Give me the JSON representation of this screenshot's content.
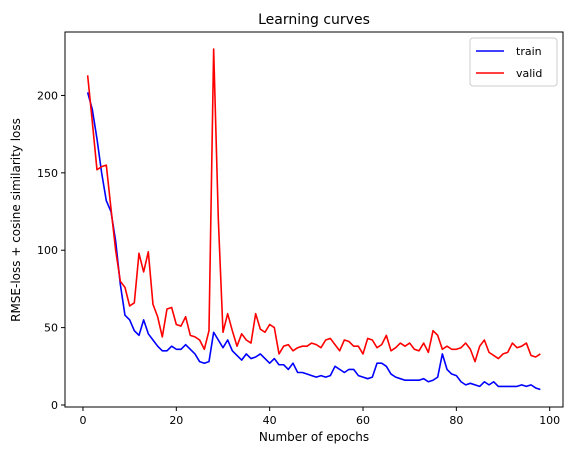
{
  "chart_data": {
    "type": "line",
    "title": "Learning curves",
    "xlabel": "Number of epochs",
    "ylabel": "RMSE-loss + cosine similarity loss",
    "xlim": [
      -3.85,
      102.85
    ],
    "ylim": [
      -1.3,
      241
    ],
    "xticks": [
      0,
      20,
      40,
      60,
      80,
      100
    ],
    "yticks": [
      0,
      50,
      100,
      150,
      200
    ],
    "grid": false,
    "legend_position": "top-right",
    "x": [
      1,
      2,
      3,
      4,
      5,
      6,
      7,
      8,
      9,
      10,
      11,
      12,
      13,
      14,
      15,
      16,
      17,
      18,
      19,
      20,
      21,
      22,
      23,
      24,
      25,
      26,
      27,
      28,
      29,
      30,
      31,
      32,
      33,
      34,
      35,
      36,
      37,
      38,
      39,
      40,
      41,
      42,
      43,
      44,
      45,
      46,
      47,
      48,
      49,
      50,
      51,
      52,
      53,
      54,
      55,
      56,
      57,
      58,
      59,
      60,
      61,
      62,
      63,
      64,
      65,
      66,
      67,
      68,
      69,
      70,
      71,
      72,
      73,
      74,
      75,
      76,
      77,
      78,
      79,
      80,
      81,
      82,
      83,
      84,
      85,
      86,
      87,
      88,
      89,
      90,
      91,
      92,
      93,
      94,
      95,
      96,
      97,
      98
    ],
    "series": [
      {
        "name": "train",
        "color": "#0000ff",
        "values": [
          202,
          191,
          172,
          150,
          132,
          125,
          106,
          78,
          58,
          55,
          48,
          45,
          55,
          46,
          42,
          38,
          35,
          35,
          38,
          36,
          36,
          39,
          36,
          33,
          28,
          27,
          28,
          47,
          42,
          37,
          42,
          35,
          32,
          29,
          33,
          30,
          31,
          33,
          30,
          27,
          30,
          26,
          26,
          23,
          27,
          21,
          21,
          20,
          19,
          18,
          19,
          18,
          19,
          25,
          23,
          21,
          23,
          23,
          19,
          18,
          17,
          18,
          27,
          27,
          25,
          20,
          18,
          17,
          16,
          16,
          16,
          16,
          17,
          15,
          16,
          18,
          33,
          23,
          20,
          19,
          15,
          13,
          14,
          13,
          12,
          15,
          13,
          15,
          12,
          12,
          12,
          12,
          12,
          13,
          12,
          13,
          11,
          10
        ]
      },
      {
        "name": "valid",
        "color": "#ff0000",
        "values": [
          213,
          183,
          152,
          154,
          155,
          127,
          100,
          80,
          76,
          64,
          66,
          98,
          86,
          99,
          65,
          57,
          44,
          62,
          63,
          52,
          51,
          57,
          45,
          44,
          42,
          36,
          48,
          230,
          120,
          47,
          59,
          48,
          38,
          46,
          42,
          40,
          59,
          49,
          47,
          52,
          50,
          33,
          38,
          39,
          35,
          37,
          38,
          38,
          40,
          39,
          37,
          42,
          43,
          39,
          35,
          42,
          41,
          38,
          38,
          33,
          43,
          42,
          37,
          39,
          45,
          35,
          37,
          40,
          38,
          40,
          36,
          35,
          40,
          34,
          48,
          45,
          36,
          38,
          36,
          36,
          37,
          40,
          36,
          28,
          38,
          42,
          34,
          32,
          30,
          33,
          34,
          40,
          37,
          38,
          40,
          32,
          31,
          33
        ]
      }
    ]
  }
}
